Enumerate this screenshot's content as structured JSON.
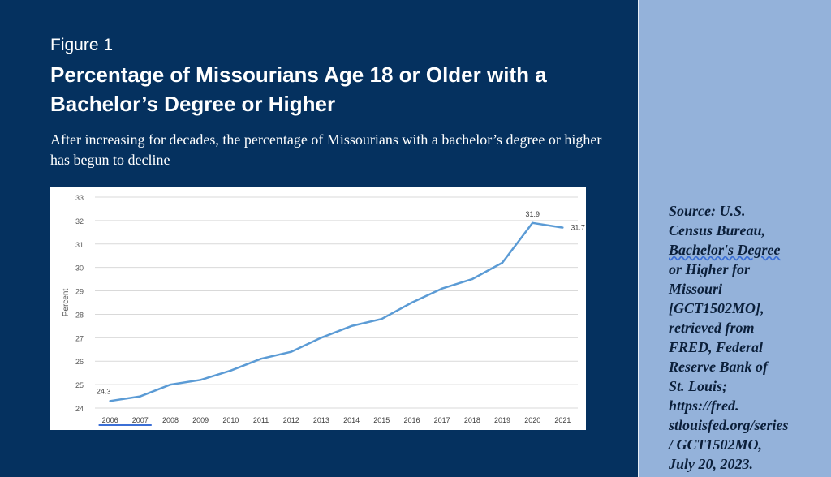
{
  "header": {
    "figure_label": "Figure 1",
    "title": "Percentage of Missourians Age 18 or Older with a Bachelor’s Degree or Higher",
    "subtitle": "After increasing for decades, the percentage of Missourians with a bachelor’s degree or higher has begun to decline"
  },
  "source": {
    "lines": [
      "Source: U.S.",
      "Census Bureau,",
      "Bachelor's Degree",
      "or Higher for",
      "Missouri",
      "[GCT1502MO],",
      "retrieved from",
      "FRED, Federal",
      "Reserve Bank of",
      "St. Louis;",
      "https://fred.",
      "stlouisfed.org/series",
      "/ GCT1502MO,",
      "July 20, 2023."
    ]
  },
  "colors": {
    "left_panel": "#05315f",
    "right_panel": "#94b2da",
    "line": "#5b9bd5"
  },
  "chart_data": {
    "type": "line",
    "title": "",
    "xlabel": "",
    "ylabel": "Percent",
    "ylim": [
      24,
      33
    ],
    "yticks": [
      "24",
      "25",
      "26",
      "27",
      "28",
      "29",
      "30",
      "31",
      "32",
      "33"
    ],
    "grid": true,
    "categories": [
      "2006",
      "2007",
      "2008",
      "2009",
      "2010",
      "2011",
      "2012",
      "2013",
      "2014",
      "2015",
      "2016",
      "2017",
      "2018",
      "2019",
      "2020",
      "2021"
    ],
    "series": [
      {
        "values": [
          24.3,
          24.5,
          25.0,
          25.2,
          25.6,
          26.1,
          26.4,
          27.0,
          27.5,
          27.8,
          28.5,
          29.1,
          29.5,
          30.2,
          31.9,
          31.7
        ]
      }
    ],
    "data_labels": [
      {
        "index": 0,
        "text": "24.3"
      },
      {
        "index": 14,
        "text": "31.9"
      },
      {
        "index": 15,
        "text": "31.7"
      }
    ]
  }
}
